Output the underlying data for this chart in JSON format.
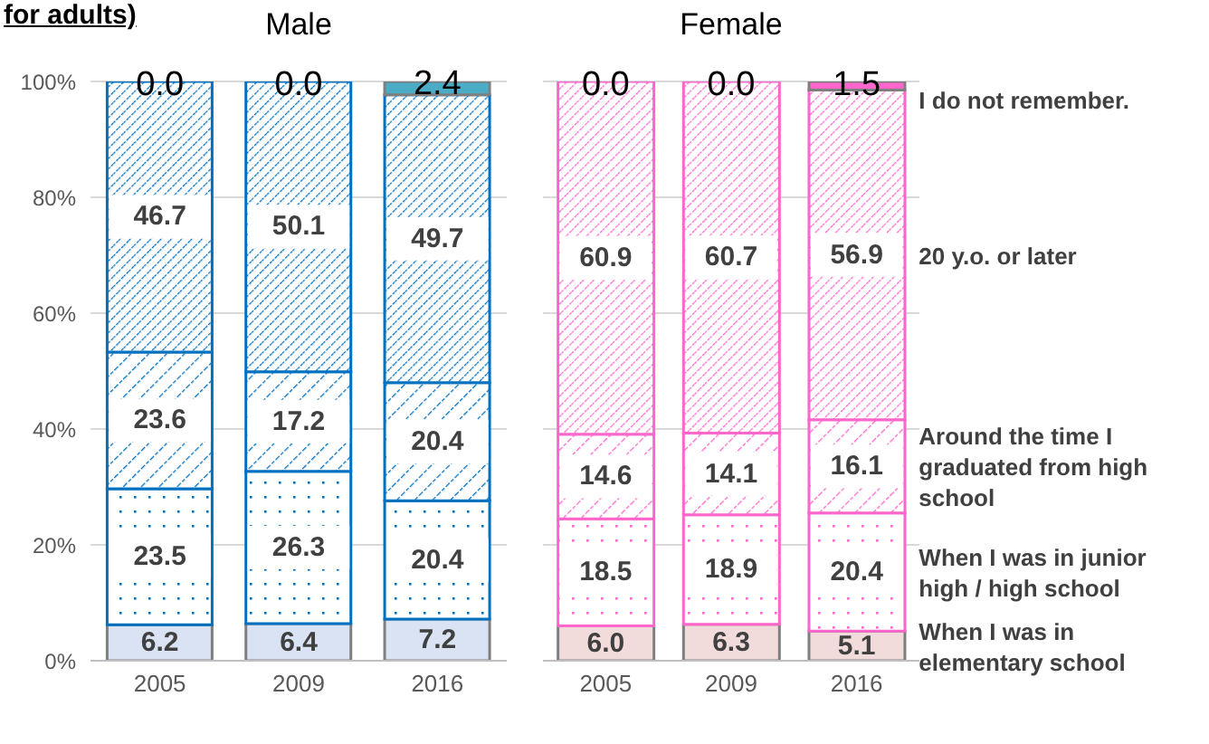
{
  "chart_data": [
    {
      "type": "bar",
      "stacked": true,
      "title": "Male",
      "annotations": [
        "for adults)"
      ],
      "categories": [
        "2005",
        "2009",
        "2016"
      ],
      "ylim": [
        0,
        100
      ],
      "yticks": [
        {
          "value": 0,
          "label": "0%"
        },
        {
          "value": 20,
          "label": "20%"
        },
        {
          "value": 40,
          "label": "40%"
        },
        {
          "value": 60,
          "label": "60%"
        },
        {
          "value": 80,
          "label": "80%"
        },
        {
          "value": 100,
          "label": "100%"
        }
      ],
      "grid": "y",
      "series": [
        {
          "color": "#dae3f3",
          "values": [
            6.2,
            6.4,
            7.2
          ],
          "value_labels": [
            "6.2",
            "6.4",
            "7.2"
          ]
        },
        {
          "color": "#0070c0",
          "values": [
            23.5,
            26.3,
            20.4
          ],
          "value_labels": [
            "23.5",
            "26.3",
            "20.4"
          ]
        },
        {
          "color": "#0070c0",
          "values": [
            23.6,
            17.2,
            20.4
          ],
          "value_labels": [
            "23.6",
            "17.2",
            "20.4"
          ]
        },
        {
          "color": "#0070c0",
          "values": [
            46.7,
            50.1,
            49.7
          ],
          "value_labels": [
            "46.7",
            "50.1",
            "49.7"
          ]
        },
        {
          "color": "#4bacc6",
          "values": [
            0,
            0,
            2.4
          ],
          "value_labels": [
            "0.0",
            "0.0",
            "2.4"
          ]
        }
      ]
    },
    {
      "type": "bar",
      "stacked": true,
      "title": "Female",
      "categories": [
        "2005",
        "2009",
        "2016"
      ],
      "ylim": [
        0,
        100
      ],
      "yticks": [
        0,
        20,
        40,
        60,
        80,
        100
      ],
      "tick_labels": "x",
      "grid": "y",
      "series": [
        {
          "name": "When I was in elementary school",
          "color": "#f2dcdb",
          "values": [
            6.0,
            6.3,
            5.1
          ],
          "value_labels": [
            "6.0",
            "6.3",
            "5.1"
          ]
        },
        {
          "name": "When I was in junior high / high school",
          "color": "#ff66cc",
          "values": [
            18.5,
            18.9,
            20.4
          ],
          "value_labels": [
            "18.5",
            "18.9",
            "20.4"
          ]
        },
        {
          "name": "Around the time I graduated from high school",
          "color": "#ff66cc",
          "values": [
            14.6,
            14.1,
            16.1
          ],
          "value_labels": [
            "14.6",
            "14.1",
            "16.1"
          ]
        },
        {
          "name": "20 y.o. or later",
          "color": "#ff66cc",
          "values": [
            60.9,
            60.7,
            56.9
          ],
          "value_labels": [
            "60.9",
            "60.7",
            "56.9"
          ]
        },
        {
          "name": "I do not remember.",
          "color": "#ff66cc",
          "values": [
            0,
            0,
            1.5
          ],
          "value_labels": [
            "0.0",
            "0.0",
            "1.5"
          ]
        }
      ]
    }
  ]
}
